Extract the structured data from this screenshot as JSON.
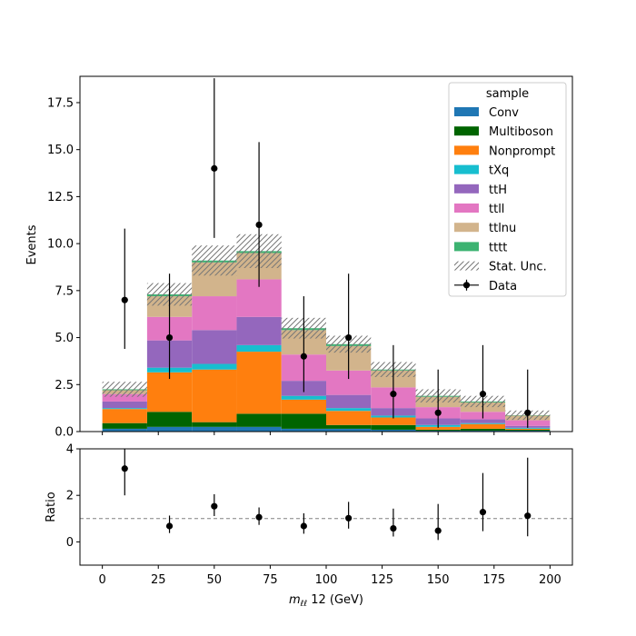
{
  "chart_data": [
    {
      "type": "bar",
      "stacked": true,
      "ylabel": "Events",
      "xlim": [
        -10,
        210
      ],
      "ylim": [
        0,
        18.9
      ],
      "bin_edges": [
        0,
        20,
        40,
        60,
        80,
        100,
        120,
        140,
        160,
        180,
        200
      ],
      "yticks": [
        0,
        2.5,
        5.0,
        7.5,
        10.0,
        12.5,
        15.0,
        17.5
      ],
      "ytick_labels": [
        "0.0",
        "2.5",
        "5.0",
        "7.5",
        "10.0",
        "12.5",
        "15.0",
        "17.5"
      ],
      "xticks": [
        0,
        25,
        50,
        75,
        100,
        125,
        150,
        175,
        200
      ],
      "grid": false,
      "legend_position": "top-right",
      "legend_title": "sample",
      "series": [
        {
          "name": "Conv",
          "color": "#1f77b4",
          "values": [
            0.15,
            0.25,
            0.25,
            0.25,
            0.15,
            0.15,
            0.1,
            0.05,
            0.05,
            0.05
          ]
        },
        {
          "name": "Multiboson",
          "color": "#006400",
          "values": [
            0.3,
            0.8,
            0.25,
            0.7,
            0.8,
            0.2,
            0.25,
            0.05,
            0.1,
            0.05
          ]
        },
        {
          "name": "Nonprompt",
          "color": "#ff7f0e",
          "values": [
            0.75,
            2.1,
            2.8,
            3.3,
            0.75,
            0.75,
            0.4,
            0.15,
            0.25,
            0.05
          ]
        },
        {
          "name": "tXq",
          "color": "#17becf",
          "values": [
            0.05,
            0.25,
            0.3,
            0.35,
            0.2,
            0.15,
            0.1,
            0.1,
            0.05,
            0.05
          ]
        },
        {
          "name": "ttH",
          "color": "#9467bd",
          "values": [
            0.35,
            1.45,
            1.8,
            1.5,
            0.8,
            0.7,
            0.4,
            0.35,
            0.2,
            0.1
          ]
        },
        {
          "name": "ttll",
          "color": "#e377c2",
          "values": [
            0.4,
            1.25,
            1.8,
            2.0,
            1.4,
            1.3,
            1.1,
            0.6,
            0.4,
            0.3
          ]
        },
        {
          "name": "ttlnu",
          "color": "#d2b48c",
          "values": [
            0.2,
            1.1,
            1.8,
            1.4,
            1.3,
            1.3,
            0.9,
            0.55,
            0.5,
            0.25
          ]
        },
        {
          "name": "tttt",
          "color": "#3cb371",
          "values": [
            0.05,
            0.1,
            0.1,
            0.1,
            0.1,
            0.1,
            0.05,
            0.05,
            0.05,
            0.02
          ]
        }
      ],
      "stat_unc": [
        0.4,
        0.6,
        0.8,
        0.9,
        0.55,
        0.45,
        0.4,
        0.35,
        0.3,
        0.25
      ],
      "stat_unc_name": "Stat. Unc.",
      "data": {
        "name": "Data",
        "x": [
          10,
          30,
          50,
          70,
          90,
          110,
          130,
          150,
          170,
          190
        ],
        "y": [
          7,
          5,
          14,
          11,
          4,
          5,
          2,
          1,
          2,
          1
        ],
        "err_low": [
          2.6,
          2.2,
          3.7,
          3.3,
          1.9,
          2.2,
          1.3,
          0.8,
          1.3,
          0.8
        ],
        "err_high": [
          3.8,
          3.4,
          4.8,
          4.4,
          3.2,
          3.4,
          2.6,
          2.3,
          2.6,
          2.3
        ]
      }
    },
    {
      "type": "scatter",
      "ylabel": "Ratio",
      "xlabel_main": "m",
      "xlabel_sub": "ℓℓ",
      "xlabel_rest": " 12 (GeV)",
      "xlim": [
        -10,
        210
      ],
      "ylim": [
        -1,
        4
      ],
      "yticks": [
        0,
        2,
        4
      ],
      "ytick_labels": [
        "0",
        "2",
        "4"
      ],
      "xticks": [
        0,
        25,
        50,
        75,
        100,
        125,
        150,
        175,
        200
      ],
      "xtick_labels": [
        "0",
        "25",
        "50",
        "75",
        "100",
        "125",
        "150",
        "175",
        "200"
      ],
      "reference_line": 1,
      "x": [
        10,
        30,
        50,
        70,
        90,
        110,
        130,
        150,
        170,
        190
      ],
      "y": [
        3.15,
        0.68,
        1.53,
        1.06,
        0.68,
        1.02,
        0.58,
        0.48,
        1.28,
        1.12
      ],
      "err_low": [
        1.15,
        0.3,
        0.42,
        0.33,
        0.33,
        0.45,
        0.35,
        0.4,
        0.82,
        0.88
      ],
      "err_high": [
        1.5,
        0.45,
        0.52,
        0.42,
        0.55,
        0.7,
        0.85,
        1.15,
        1.68,
        2.5
      ]
    }
  ]
}
